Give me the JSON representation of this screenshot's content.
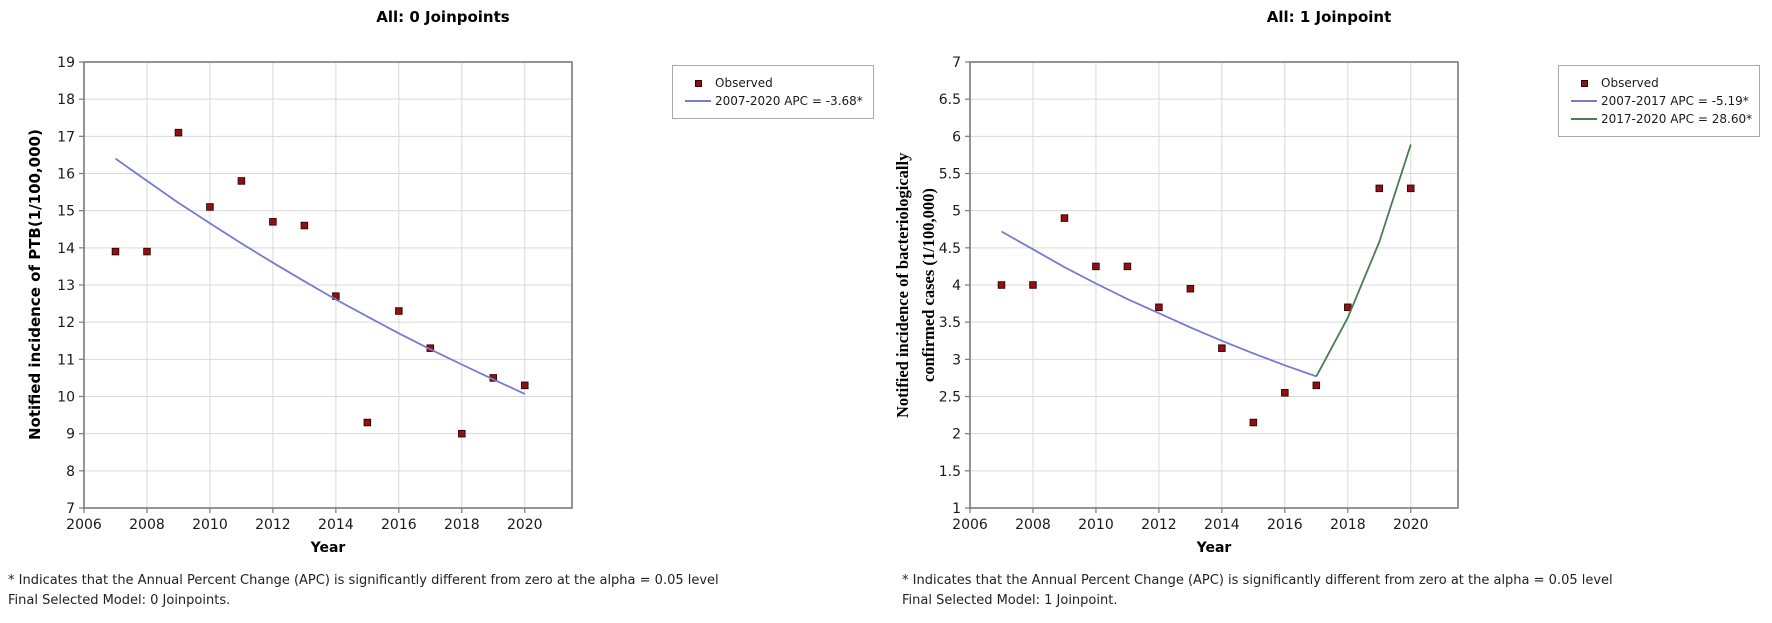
{
  "style": {
    "background": "#ffffff",
    "frame_color": "#7a7a7a",
    "grid_color": "#d9d9d9",
    "text_color": "#1a1a1a",
    "marker_color": "#8e1212",
    "marker_edge": "#330000",
    "blue_line": "#767bd0",
    "green_line": "#4a7c52"
  },
  "chart_data": [
    {
      "type": "scatter",
      "title": "All: 0 Joinpoints",
      "xlabel": "Year",
      "ylabel_lines": [
        "Notified incidence of PTB(1/100,000)"
      ],
      "xlim": [
        2006,
        2021.5
      ],
      "ylim": [
        7,
        19
      ],
      "xticks": [
        2006,
        2008,
        2010,
        2012,
        2014,
        2016,
        2018,
        2020
      ],
      "ytick_step": 1,
      "grid": true,
      "legend_position": "outside-top-right",
      "series": [
        {
          "name": "Observed",
          "type": "scatter",
          "color": "#8e1212",
          "x": [
            2007,
            2008,
            2009,
            2010,
            2011,
            2012,
            2013,
            2014,
            2015,
            2016,
            2017,
            2018,
            2019,
            2020
          ],
          "y": [
            13.9,
            13.9,
            17.1,
            15.1,
            15.8,
            14.7,
            14.6,
            12.7,
            9.3,
            12.3,
            11.3,
            9.0,
            10.5,
            10.3
          ]
        },
        {
          "name": "2007-2020 APC  = -3.68*",
          "type": "line",
          "color": "#767bd0",
          "x": [
            2007,
            2008,
            2009,
            2010,
            2011,
            2012,
            2013,
            2014,
            2015,
            2016,
            2017,
            2018,
            2019,
            2020
          ],
          "y": [
            16.4,
            15.8,
            15.21,
            14.66,
            14.12,
            13.6,
            13.1,
            12.61,
            12.15,
            11.7,
            11.27,
            10.86,
            10.46,
            10.07
          ]
        }
      ],
      "footnotes": [
        "* Indicates that the Annual Percent Change (APC) is significantly different from zero at the alpha = 0.05 level",
        "Final Selected Model: 0 Joinpoints."
      ]
    },
    {
      "type": "scatter",
      "title": "All: 1 Joinpoint",
      "xlabel": "Year",
      "ylabel_lines": [
        "Notified incidence of  bacteriologically",
        "confirmed cases (1/100,000)"
      ],
      "xlim": [
        2006,
        2021.5
      ],
      "ylim": [
        1,
        7
      ],
      "xticks": [
        2006,
        2008,
        2010,
        2012,
        2014,
        2016,
        2018,
        2020
      ],
      "ytick_step": 0.5,
      "grid": true,
      "legend_position": "outside-top-right",
      "series": [
        {
          "name": "Observed",
          "type": "scatter",
          "color": "#8e1212",
          "x": [
            2007,
            2008,
            2009,
            2010,
            2011,
            2012,
            2013,
            2014,
            2015,
            2016,
            2017,
            2018,
            2019,
            2020
          ],
          "y": [
            4.0,
            4.0,
            4.9,
            4.25,
            4.25,
            3.7,
            3.95,
            3.15,
            2.15,
            2.55,
            2.65,
            3.7,
            5.3,
            5.3
          ]
        },
        {
          "name": "2007-2017 APC  = -5.19*",
          "type": "line",
          "color": "#767bd0",
          "x": [
            2007,
            2008,
            2009,
            2010,
            2011,
            2012,
            2013,
            2014,
            2015,
            2016,
            2017
          ],
          "y": [
            4.72,
            4.48,
            4.24,
            4.02,
            3.81,
            3.62,
            3.43,
            3.25,
            3.08,
            2.92,
            2.77
          ]
        },
        {
          "name": "2017-2020 APC  = 28.60*",
          "type": "line",
          "color": "#4a7c52",
          "x": [
            2017,
            2018,
            2019,
            2020
          ],
          "y": [
            2.77,
            3.56,
            4.58,
            5.89
          ]
        }
      ],
      "footnotes": [
        "* Indicates that the Annual Percent Change (APC) is significantly different from zero at the alpha = 0.05 level",
        "Final Selected Model: 1 Joinpoint."
      ]
    }
  ]
}
